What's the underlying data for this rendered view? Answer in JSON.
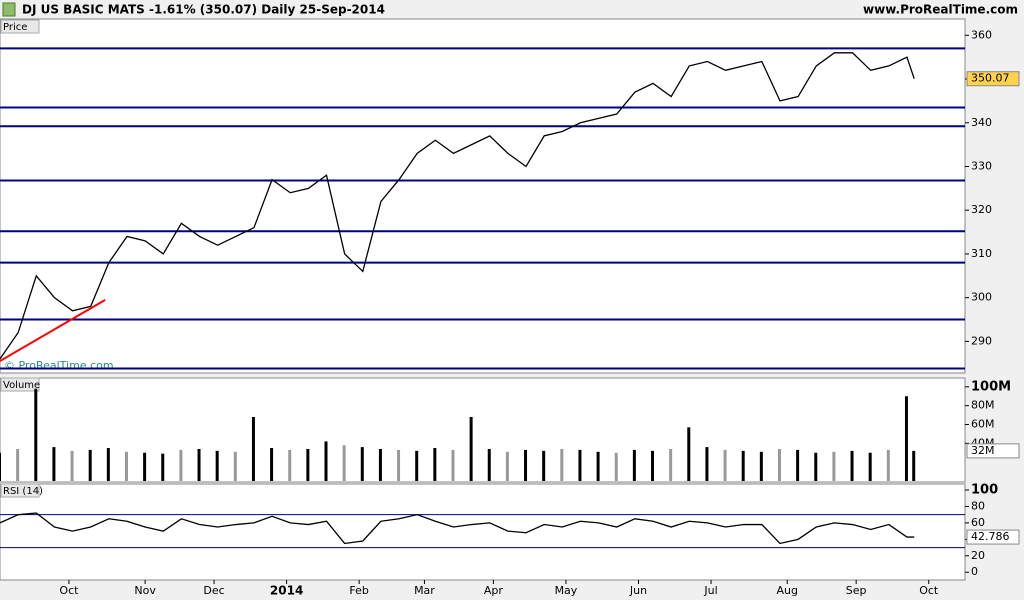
{
  "chart_data": [
    {
      "type": "line",
      "title": "DJ US BASIC MATS  -1.61% (350.07)  Daily  25-Sep-2014",
      "source": "www.ProRealTime.com",
      "watermark": "© ProRealTime.com",
      "label": "Price",
      "color": "#000000",
      "x": [
        0,
        5,
        10,
        15,
        20,
        25,
        30,
        35,
        40,
        45,
        50,
        55,
        60,
        65,
        70,
        75,
        80,
        85,
        90,
        95,
        100,
        105,
        110,
        115,
        120,
        125,
        130,
        135,
        140,
        145,
        150,
        155,
        160,
        165,
        170,
        175,
        180,
        185,
        190,
        195,
        200,
        205,
        210,
        215,
        220,
        225,
        230,
        235,
        240,
        245,
        250,
        252
      ],
      "values": [
        286,
        292,
        305,
        300,
        297,
        298,
        308,
        314,
        313,
        310,
        317,
        314,
        312,
        314,
        316,
        327,
        324,
        325,
        328,
        310,
        306,
        322,
        327,
        333,
        336,
        333,
        335,
        337,
        333,
        330,
        337,
        338,
        340,
        341,
        342,
        347,
        349,
        346,
        353,
        354,
        352,
        353,
        354,
        345,
        346,
        353,
        356,
        356,
        352,
        353,
        355,
        350.07
      ],
      "value_labels": [
        null,
        null,
        null,
        null,
        null,
        null,
        null,
        null,
        null,
        null,
        null,
        null,
        null,
        null,
        null,
        null,
        null,
        null,
        null,
        null,
        null,
        null,
        null,
        null,
        null,
        null,
        null,
        null,
        null,
        null,
        null,
        null,
        null,
        null,
        null,
        null,
        null,
        null,
        null,
        null,
        null,
        null,
        null,
        null,
        null,
        null,
        null,
        null,
        null,
        null,
        null,
        "350.07"
      ],
      "levels": [
        357,
        343.5,
        339.2,
        326.8,
        315.2,
        308,
        295,
        283.8
      ],
      "level_color": "#000080",
      "trendline": {
        "x": [
          0,
          29
        ],
        "y": [
          285.5,
          299.5
        ],
        "color": "#ff0000"
      },
      "xlim": [
        0,
        266
      ],
      "ylim": [
        283,
        363.5
      ],
      "yticks": [
        290,
        300,
        310,
        320,
        330,
        340,
        350,
        360
      ],
      "xticks": [
        {
          "value": 19,
          "label": "Oct"
        },
        {
          "value": 40,
          "label": "Nov"
        },
        {
          "value": 59,
          "label": "Dec"
        },
        {
          "value": 79,
          "label": "2014"
        },
        {
          "value": 99,
          "label": "Feb"
        },
        {
          "value": 117,
          "label": "Mar"
        },
        {
          "value": 136,
          "label": "Apr"
        },
        {
          "value": 156,
          "label": "May"
        },
        {
          "value": 176,
          "label": "Jun"
        },
        {
          "value": 196,
          "label": "Jul"
        },
        {
          "value": 217,
          "label": "Aug"
        },
        {
          "value": 236,
          "label": "Sep"
        },
        {
          "value": 256,
          "label": "Oct"
        }
      ]
    },
    {
      "type": "bar",
      "label": "Volume",
      "color": "#000000",
      "x": [
        0,
        5,
        10,
        15,
        20,
        25,
        30,
        35,
        40,
        45,
        50,
        55,
        60,
        65,
        70,
        75,
        80,
        85,
        90,
        95,
        100,
        105,
        110,
        115,
        120,
        125,
        130,
        135,
        140,
        145,
        150,
        155,
        160,
        165,
        170,
        175,
        180,
        185,
        190,
        195,
        200,
        205,
        210,
        215,
        220,
        225,
        230,
        235,
        240,
        245,
        250,
        252
      ],
      "values": [
        30,
        34,
        98,
        36,
        32,
        33,
        35,
        31,
        30,
        29,
        33,
        34,
        32,
        31,
        68,
        35,
        33,
        34,
        42,
        38,
        36,
        34,
        33,
        32,
        35,
        33,
        68,
        34,
        31,
        33,
        32,
        34,
        33,
        31,
        30,
        33,
        32,
        34,
        57,
        36,
        33,
        32,
        31,
        34,
        33,
        30,
        31,
        32,
        30,
        33,
        90,
        32
      ],
      "value_labels": [
        null,
        null,
        null,
        null,
        null,
        null,
        null,
        null,
        null,
        null,
        null,
        null,
        null,
        null,
        null,
        null,
        null,
        null,
        null,
        null,
        null,
        null,
        null,
        null,
        null,
        null,
        null,
        null,
        null,
        null,
        null,
        null,
        null,
        null,
        null,
        null,
        null,
        null,
        null,
        null,
        null,
        null,
        null,
        null,
        null,
        null,
        null,
        null,
        null,
        null,
        null,
        "32M"
      ],
      "xlim": [
        0,
        266
      ],
      "ylim": [
        0,
        103
      ],
      "yticks": [
        {
          "value": 40,
          "label": "40M"
        },
        {
          "value": 60,
          "label": "60M"
        },
        {
          "value": 80,
          "label": "80M"
        },
        {
          "value": 100,
          "label": "100M"
        }
      ]
    },
    {
      "type": "line",
      "label": "RSI (14)",
      "color": "#000000",
      "x": [
        0,
        5,
        10,
        15,
        20,
        25,
        30,
        35,
        40,
        45,
        50,
        55,
        60,
        65,
        70,
        75,
        80,
        85,
        90,
        95,
        100,
        105,
        110,
        115,
        120,
        125,
        130,
        135,
        140,
        145,
        150,
        155,
        160,
        165,
        170,
        175,
        180,
        185,
        190,
        195,
        200,
        205,
        210,
        215,
        220,
        225,
        230,
        235,
        240,
        245,
        250,
        252
      ],
      "values": [
        60,
        70,
        72,
        55,
        50,
        55,
        65,
        62,
        55,
        50,
        65,
        58,
        55,
        58,
        60,
        68,
        60,
        58,
        62,
        35,
        38,
        62,
        65,
        70,
        62,
        55,
        58,
        60,
        50,
        48,
        58,
        55,
        62,
        60,
        55,
        65,
        62,
        55,
        62,
        60,
        55,
        58,
        58,
        35,
        40,
        55,
        60,
        58,
        52,
        58,
        42.786,
        42.786
      ],
      "value_labels": [
        null,
        null,
        null,
        null,
        null,
        null,
        null,
        null,
        null,
        null,
        null,
        null,
        null,
        null,
        null,
        null,
        null,
        null,
        null,
        null,
        null,
        null,
        null,
        null,
        null,
        null,
        null,
        null,
        null,
        null,
        null,
        null,
        null,
        null,
        null,
        null,
        null,
        null,
        null,
        null,
        null,
        null,
        null,
        null,
        null,
        null,
        null,
        null,
        null,
        null,
        null,
        "42.786"
      ],
      "levels": [
        70,
        30
      ],
      "level_color": "#000080",
      "xlim": [
        0,
        266
      ],
      "ylim": [
        -7,
        100
      ],
      "yticks": [
        0,
        20,
        40,
        60,
        80,
        100
      ]
    }
  ]
}
